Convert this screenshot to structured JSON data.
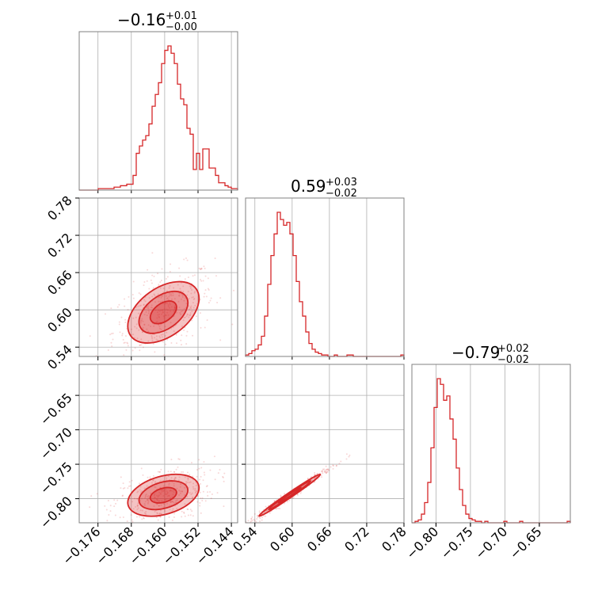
{
  "chart_data": {
    "type": "corner",
    "color": "#d62728",
    "params": [
      {
        "title": {
          "median": "−0.16",
          "plus": "+0.01",
          "minus": "−0.00"
        },
        "range": [
          -0.1805,
          -0.1425
        ],
        "ticks": [
          -0.176,
          -0.168,
          -0.16,
          -0.152,
          -0.144
        ],
        "tick_labels": [
          "−0.176",
          "−0.168",
          "−0.160",
          "−0.152",
          "−0.144"
        ],
        "hist": [
          0,
          0,
          0,
          0,
          0,
          0,
          1,
          1,
          1,
          1,
          1,
          2,
          2,
          3,
          3,
          4,
          4,
          10,
          25,
          30,
          34,
          37,
          45,
          57,
          65,
          73,
          86,
          95,
          98,
          93,
          86,
          72,
          62,
          58,
          42,
          38,
          14,
          25,
          14,
          28,
          28,
          15,
          15,
          10,
          5,
          5,
          3,
          2,
          1,
          1
        ]
      },
      {
        "title": {
          "median": "0.59",
          "plus": "+0.03",
          "minus": "−0.02"
        },
        "range": [
          0.525,
          0.78
        ],
        "ticks": [
          0.54,
          0.6,
          0.66,
          0.72,
          0.78
        ],
        "tick_labels": [
          "0.54",
          "0.60",
          "0.66",
          "0.72",
          "0.78"
        ],
        "hist": [
          1,
          2,
          4,
          5,
          8,
          14,
          28,
          50,
          70,
          85,
          100,
          95,
          91,
          93,
          85,
          70,
          52,
          38,
          28,
          17,
          9,
          5,
          3,
          2,
          1,
          1,
          0,
          0,
          1,
          0,
          0,
          0,
          1,
          1,
          0,
          0,
          0,
          0,
          0,
          0,
          0,
          0,
          0,
          0,
          0,
          0,
          0,
          0,
          0,
          1
        ]
      },
      {
        "title": {
          "median": "−0.79",
          "plus": "+0.02",
          "minus": "−0.02"
        },
        "range": [
          -0.835,
          -0.605
        ],
        "ticks": [
          -0.8,
          -0.75,
          -0.7,
          -0.65
        ],
        "tick_labels": [
          "−0.80",
          "−0.75",
          "−0.70",
          "−0.65"
        ],
        "tick_labels_y": [
          "−0.65",
          "−0.70",
          "−0.75",
          "−0.80"
        ],
        "hist": [
          0,
          1,
          2,
          6,
          14,
          28,
          52,
          80,
          100,
          96,
          85,
          88,
          72,
          58,
          38,
          23,
          12,
          6,
          3,
          2,
          1,
          1,
          0,
          1,
          0,
          0,
          0,
          0,
          0,
          1,
          0,
          0,
          0,
          0,
          1,
          0,
          0,
          0,
          0,
          0,
          0,
          0,
          0,
          0,
          0,
          0,
          0,
          0,
          0,
          1
        ]
      }
    ],
    "joint": [
      {
        "pair": [
          0,
          1
        ],
        "mean": [
          -0.1603,
          0.596
        ],
        "sd": [
          0.0045,
          0.026
        ],
        "rho": 0.45
      },
      {
        "pair": [
          0,
          2
        ],
        "mean": [
          -0.1603,
          -0.795
        ],
        "sd": [
          0.0045,
          0.016
        ],
        "rho": 0.35
      },
      {
        "pair": [
          1,
          2
        ],
        "mean": [
          0.596,
          -0.795
        ],
        "sd": [
          0.026,
          0.016
        ],
        "rho": 0.99
      }
    ],
    "grid": true
  }
}
